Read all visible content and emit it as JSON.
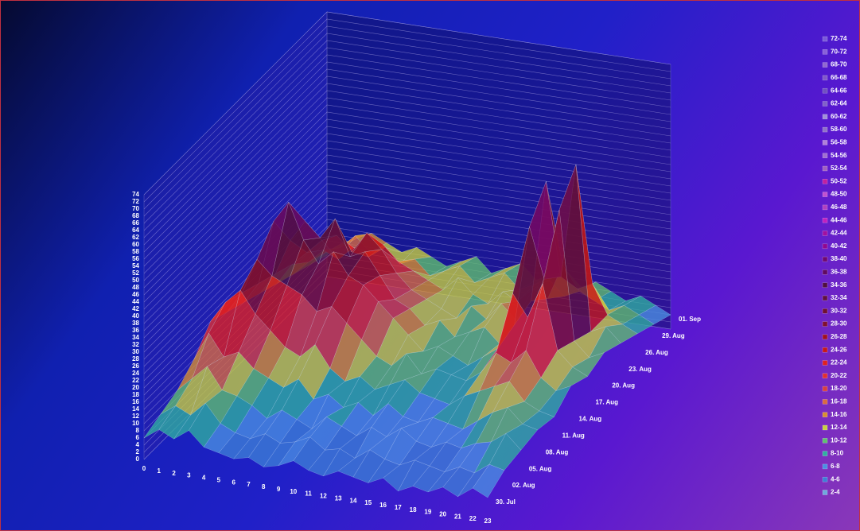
{
  "chart_data": {
    "type": "surface",
    "x": [
      0,
      1,
      2,
      3,
      4,
      5,
      6,
      7,
      8,
      9,
      10,
      11,
      12,
      13,
      14,
      15,
      16,
      17,
      18,
      19,
      20,
      21,
      22,
      23
    ],
    "categories": [
      "30. Jul",
      "02. Aug",
      "05. Aug",
      "08. Aug",
      "11. Aug",
      "14. Aug",
      "17. Aug",
      "20. Aug",
      "23. Aug",
      "26. Aug",
      "29. Aug",
      "01. Sep"
    ],
    "values": [
      [
        6,
        9,
        7,
        10,
        6,
        5,
        4,
        5,
        3,
        4,
        6,
        4,
        3,
        5,
        4,
        3,
        5,
        2,
        4,
        3,
        5,
        3,
        6,
        4
      ],
      [
        8,
        11,
        9,
        13,
        8,
        6,
        5,
        7,
        5,
        6,
        8,
        5,
        6,
        4,
        7,
        5,
        4,
        6,
        5,
        4,
        6,
        5,
        8,
        7
      ],
      [
        10,
        14,
        18,
        12,
        11,
        9,
        6,
        9,
        7,
        5,
        9,
        7,
        5,
        8,
        6,
        9,
        6,
        5,
        7,
        6,
        8,
        9,
        12,
        8
      ],
      [
        14,
        22,
        16,
        18,
        14,
        12,
        10,
        13,
        8,
        10,
        7,
        9,
        6,
        10,
        7,
        6,
        8,
        7,
        6,
        9,
        12,
        14,
        10,
        9
      ],
      [
        20,
        26,
        30,
        24,
        20,
        16,
        14,
        18,
        12,
        9,
        11,
        8,
        10,
        12,
        9,
        8,
        7,
        10,
        12,
        14,
        16,
        11,
        9,
        8
      ],
      [
        18,
        24,
        34,
        30,
        28,
        26,
        22,
        24,
        20,
        16,
        12,
        10,
        14,
        9,
        11,
        10,
        9,
        12,
        18,
        16,
        20,
        13,
        10,
        12
      ],
      [
        16,
        22,
        40,
        46,
        36,
        30,
        34,
        28,
        26,
        22,
        18,
        14,
        10,
        12,
        10,
        8,
        11,
        14,
        30,
        24,
        34,
        16,
        12,
        10
      ],
      [
        14,
        20,
        30,
        36,
        32,
        38,
        28,
        30,
        24,
        18,
        16,
        12,
        14,
        10,
        12,
        14,
        10,
        16,
        44,
        30,
        50,
        14,
        10,
        12
      ],
      [
        12,
        18,
        22,
        26,
        28,
        24,
        30,
        26,
        20,
        16,
        14,
        12,
        10,
        14,
        11,
        16,
        12,
        18,
        52,
        26,
        58,
        12,
        14,
        10
      ],
      [
        10,
        14,
        18,
        16,
        20,
        18,
        22,
        18,
        16,
        14,
        12,
        16,
        12,
        10,
        14,
        12,
        16,
        14,
        24,
        18,
        20,
        12,
        10,
        8
      ],
      [
        8,
        12,
        14,
        18,
        14,
        16,
        12,
        14,
        10,
        12,
        14,
        10,
        12,
        14,
        10,
        12,
        14,
        10,
        12,
        10,
        8,
        10,
        8,
        6
      ],
      [
        6,
        10,
        12,
        14,
        12,
        10,
        12,
        10,
        8,
        10,
        12,
        8,
        10,
        12,
        8,
        10,
        12,
        8,
        10,
        8,
        6,
        8,
        6,
        4
      ]
    ],
    "zlim": [
      0,
      74
    ],
    "zticks": [
      0,
      2,
      4,
      6,
      8,
      10,
      12,
      14,
      16,
      18,
      20,
      22,
      24,
      26,
      28,
      30,
      32,
      34,
      36,
      38,
      40,
      42,
      44,
      46,
      48,
      50,
      52,
      54,
      56,
      58,
      60,
      62,
      64,
      66,
      68,
      70,
      72,
      74
    ],
    "grid": true,
    "legend": [
      {
        "label": "72-74",
        "color": "#7a5ad8"
      },
      {
        "label": "70-72",
        "color": "#8860d8"
      },
      {
        "label": "68-70",
        "color": "#9068d0"
      },
      {
        "label": "66-68",
        "color": "#8058c8"
      },
      {
        "label": "64-66",
        "color": "#7050c0"
      },
      {
        "label": "62-64",
        "color": "#8060c8"
      },
      {
        "label": "60-62",
        "color": "#a090d8"
      },
      {
        "label": "58-60",
        "color": "#9070c8"
      },
      {
        "label": "56-58",
        "color": "#b080d8"
      },
      {
        "label": "54-56",
        "color": "#a070d0"
      },
      {
        "label": "52-54",
        "color": "#a060c0"
      },
      {
        "label": "50-52",
        "color": "#c020a0"
      },
      {
        "label": "48-50",
        "color": "#c050d0"
      },
      {
        "label": "46-48",
        "color": "#b040c0"
      },
      {
        "label": "44-46",
        "color": "#c020c0"
      },
      {
        "label": "42-44",
        "color": "#a010a0"
      },
      {
        "label": "40-42",
        "color": "#900890"
      },
      {
        "label": "38-40",
        "color": "#700870"
      },
      {
        "label": "36-38",
        "color": "#600a60"
      },
      {
        "label": "34-36",
        "color": "#501040"
      },
      {
        "label": "32-34",
        "color": "#601040"
      },
      {
        "label": "30-32",
        "color": "#701030"
      },
      {
        "label": "28-30",
        "color": "#801030"
      },
      {
        "label": "26-28",
        "color": "#a01020"
      },
      {
        "label": "24-26",
        "color": "#c81818"
      },
      {
        "label": "22-24",
        "color": "#e02020"
      },
      {
        "label": "20-22",
        "color": "#e03030"
      },
      {
        "label": "18-20",
        "color": "#d84040"
      },
      {
        "label": "16-18",
        "color": "#d86a40"
      },
      {
        "label": "14-16",
        "color": "#d89030"
      },
      {
        "label": "12-14",
        "color": "#c8d040"
      },
      {
        "label": "10-12",
        "color": "#60c070"
      },
      {
        "label": "8-10",
        "color": "#30b0a0"
      },
      {
        "label": "6-8",
        "color": "#4a90e2"
      },
      {
        "label": "4-6",
        "color": "#3d7fd6"
      },
      {
        "label": "2-4",
        "color": "#6fa8dc"
      }
    ]
  }
}
